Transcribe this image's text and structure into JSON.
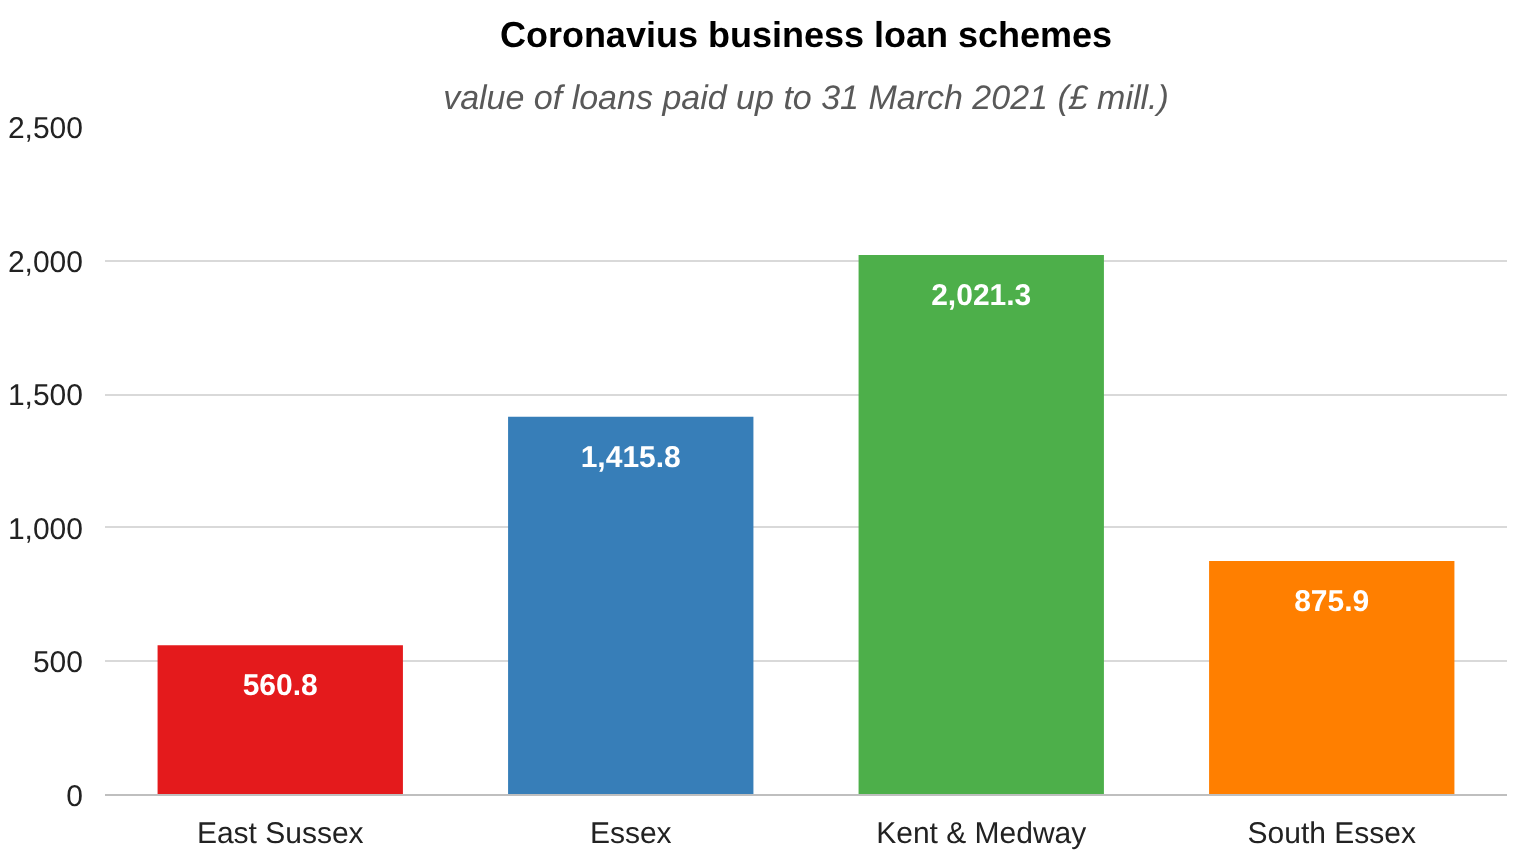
{
  "chart_data": {
    "type": "bar",
    "title": "Coronavius business loan schemes",
    "subtitle": "value of loans paid up to 31 March 2021 (£ mill.)",
    "categories": [
      "East Sussex",
      "Essex",
      "Kent & Medway",
      "South Essex"
    ],
    "values": [
      560.8,
      1415.8,
      2021.3,
      875.9
    ],
    "value_labels": [
      "560.8",
      "1,415.8",
      "2,021.3",
      "875.9"
    ],
    "colors": [
      "#e41a1c",
      "#377eb8",
      "#4daf4a",
      "#ff7f00"
    ],
    "ylim": [
      0,
      2500
    ],
    "yticks": [
      {
        "value": 0,
        "label": "0"
      },
      {
        "value": 500,
        "label": "500"
      },
      {
        "value": 1000,
        "label": "1,000"
      },
      {
        "value": 1500,
        "label": "1,500"
      },
      {
        "value": 2000,
        "label": "2,000"
      },
      {
        "value": 2500,
        "label": "2,500"
      }
    ],
    "grid": "y"
  }
}
